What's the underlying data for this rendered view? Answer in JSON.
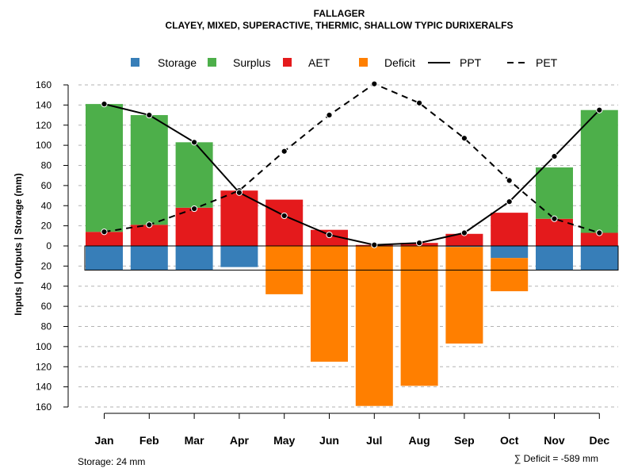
{
  "chart_data": {
    "type": "bar",
    "title": "FALLAGER",
    "subtitle": "CLAYEY, MIXED, SUPERACTIVE, THERMIC, SHALLOW TYPIC DURIXERALFS",
    "ylabel": "Inputs | Outputs | Storage     (mm)",
    "categories": [
      "Jan",
      "Feb",
      "Mar",
      "Apr",
      "May",
      "Jun",
      "Jul",
      "Aug",
      "Sep",
      "Oct",
      "Nov",
      "Dec"
    ],
    "ylim": [
      -160,
      160
    ],
    "yticks": [
      160,
      140,
      120,
      100,
      80,
      60,
      40,
      20,
      0,
      20,
      40,
      60,
      80,
      100,
      120,
      140,
      160
    ],
    "storage_capacity": 24,
    "series": [
      {
        "name": "Storage",
        "color": "#377eb8",
        "values": [
          24,
          24,
          24,
          21,
          0,
          0,
          0,
          0,
          1,
          12,
          24,
          24
        ]
      },
      {
        "name": "Surplus",
        "color": "#4daf4a",
        "values": [
          127,
          109,
          65,
          0,
          0,
          0,
          0,
          0,
          0,
          0,
          51,
          122
        ]
      },
      {
        "name": "AET",
        "color": "#e41a1c",
        "values": [
          14,
          21,
          38,
          55,
          46,
          16,
          1,
          3,
          12,
          33,
          27,
          13
        ]
      },
      {
        "name": "Deficit",
        "color": "#ff7f00",
        "values": [
          0,
          0,
          0,
          0,
          48,
          115,
          159,
          139,
          96,
          33,
          0,
          0
        ]
      },
      {
        "name": "PPT",
        "color": "#000000",
        "line": "solid",
        "values": [
          141,
          130,
          103,
          53,
          30,
          11,
          1,
          3,
          13,
          44,
          89,
          135
        ]
      },
      {
        "name": "PET",
        "color": "#000000",
        "line": "dashed",
        "values": [
          14,
          21,
          37,
          55,
          94,
          130,
          161,
          142,
          107,
          65,
          27,
          13
        ]
      }
    ],
    "legend": {
      "position": "top",
      "items": [
        "Storage",
        "Surplus",
        "AET",
        "Deficit",
        "PPT",
        "PET"
      ]
    },
    "grid": true,
    "notes": {
      "storage_label": "Storage: 24 mm",
      "deficit_label": "∑ Deficit = -589 mm"
    }
  }
}
